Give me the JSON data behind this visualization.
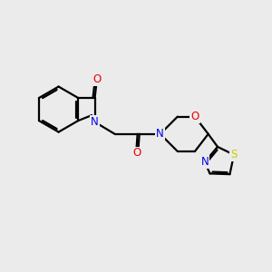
{
  "background_color": "#ebebeb",
  "atom_colors": {
    "N": "#0000ee",
    "O": "#ee0000",
    "S": "#cccc00"
  },
  "line_color": "#000000",
  "line_width": 1.6,
  "figsize": [
    3.0,
    3.0
  ],
  "dpi": 100
}
